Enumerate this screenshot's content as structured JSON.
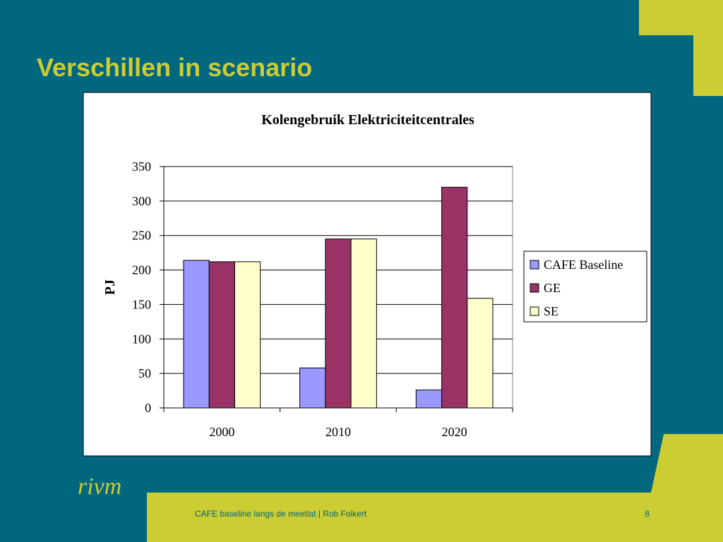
{
  "slide": {
    "title": "Verschillen in scenario",
    "logo": "rivm",
    "footer": "CAFE baseline langs de meetlat | Rob Folkert",
    "page_number": 8
  },
  "chart_data": {
    "type": "bar",
    "title": "Kolengebruik Elektriciteitcentrales",
    "y_label": "PJ",
    "categories": [
      "2000",
      "2010",
      "2020"
    ],
    "series": [
      {
        "name": "CAFE Baseline",
        "color": "#9999ff",
        "values": [
          214,
          58,
          26
        ]
      },
      {
        "name": "GE",
        "color": "#993366",
        "values": [
          212,
          245,
          320
        ]
      },
      {
        "name": "SE",
        "color": "#ffffcc",
        "values": [
          212,
          245,
          159
        ]
      }
    ],
    "ylim": [
      0,
      350
    ],
    "yticks": [
      0,
      50,
      100,
      150,
      200,
      250,
      300,
      350
    ],
    "grid": true,
    "legend": "right"
  }
}
